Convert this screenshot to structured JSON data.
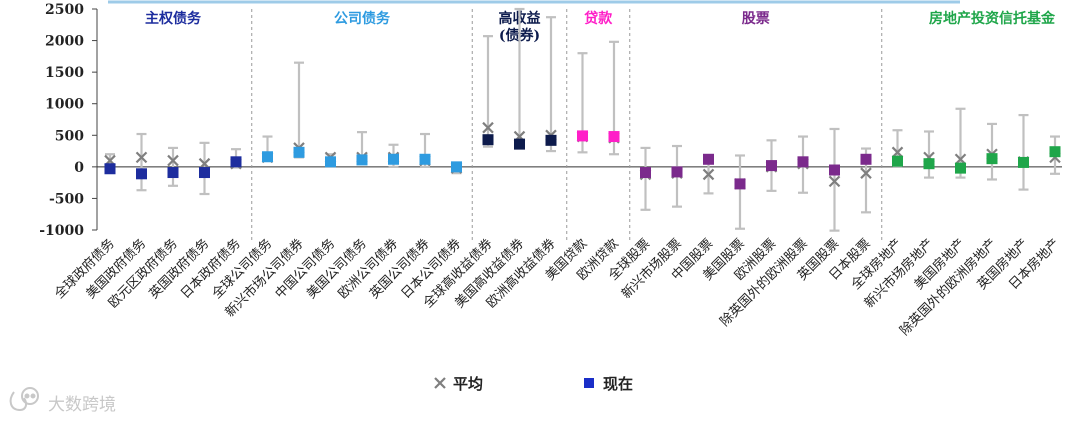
{
  "chart_data": {
    "type": "scatter",
    "ylim": [
      -1000,
      2500
    ],
    "yticks": [
      "2500",
      "2000",
      "1500",
      "1000",
      "500",
      "0",
      "-500",
      "-1000"
    ],
    "ytick_values": [
      2500,
      2000,
      1500,
      1000,
      500,
      0,
      -500,
      -1000
    ],
    "groups": [
      {
        "label": "主权债务",
        "color": "#1d2d9e",
        "start": 0,
        "end": 4
      },
      {
        "label": "公司债务",
        "color": "#2e9be0",
        "start": 5,
        "end": 11
      },
      {
        "label": "高收益\n(债券)",
        "color": "#0d1b4c",
        "start": 12,
        "end": 14
      },
      {
        "label": "贷款",
        "color": "#ff1fc8",
        "start": 15,
        "end": 16
      },
      {
        "label": "股票",
        "color": "#7b2a8c",
        "start": 17,
        "end": 24
      },
      {
        "label": "房地产投资信托基金",
        "color": "#1fa64a",
        "start": 25,
        "end": 31
      }
    ],
    "categories": [
      "全球政府债务",
      "美国政府债务",
      "欧元区政府债务",
      "英国政府债务",
      "日本政府债务",
      "全球公司债务",
      "新兴市场公司债券",
      "中国公司债务",
      "美国公司债务",
      "欧洲公司债券",
      "英国公司债券",
      "日本公司债券",
      "全球高收益债券",
      "美国高收益债券",
      "欧洲高收益债券",
      "美国贷款",
      "欧洲贷款",
      "全球股票",
      "新兴市场股票",
      "中国股票",
      "美国股票",
      "欧洲股票",
      "除英国外的欧洲股票",
      "英国股票",
      "日本股票",
      "全球房地产",
      "新兴市场房地产",
      "美国房地产",
      "除英国外的欧洲房地产",
      "英国房地产",
      "日本房地产"
    ],
    "series": [
      {
        "name": "平均",
        "marker": "x",
        "color": "#7f7f7f",
        "values": [
          100,
          150,
          100,
          50,
          50,
          150,
          300,
          150,
          150,
          150,
          100,
          -20,
          620,
          480,
          500,
          480,
          460,
          -120,
          -100,
          -120,
          -270,
          0,
          50,
          -230,
          -100,
          230,
          150,
          120,
          200,
          80,
          150
        ]
      },
      {
        "name": "现在",
        "marker": "square",
        "values": [
          -30,
          -110,
          -90,
          -90,
          80,
          160,
          230,
          80,
          110,
          120,
          120,
          0,
          430,
          360,
          420,
          490,
          480,
          -90,
          -80,
          120,
          -270,
          20,
          80,
          -50,
          120,
          90,
          50,
          -20,
          130,
          70,
          240
        ]
      }
    ],
    "range_low": [
      -50,
      -370,
      -300,
      -430,
      -10,
      100,
      150,
      50,
      50,
      0,
      0,
      -100,
      320,
      330,
      250,
      230,
      200,
      -680,
      -630,
      -420,
      -980,
      -380,
      -410,
      -1010,
      -720,
      0,
      -170,
      -170,
      -200,
      -360,
      -110
    ],
    "range_high": [
      200,
      520,
      300,
      380,
      280,
      480,
      1650,
      200,
      550,
      350,
      520,
      30,
      2070,
      2500,
      2370,
      1800,
      1980,
      300,
      330,
      150,
      180,
      420,
      480,
      600,
      290,
      580,
      560,
      920,
      680,
      820,
      480
    ],
    "legend": [
      {
        "label": "平均",
        "marker": "x"
      },
      {
        "label": "现在",
        "marker": "square"
      }
    ]
  },
  "watermark": "大数跨境"
}
